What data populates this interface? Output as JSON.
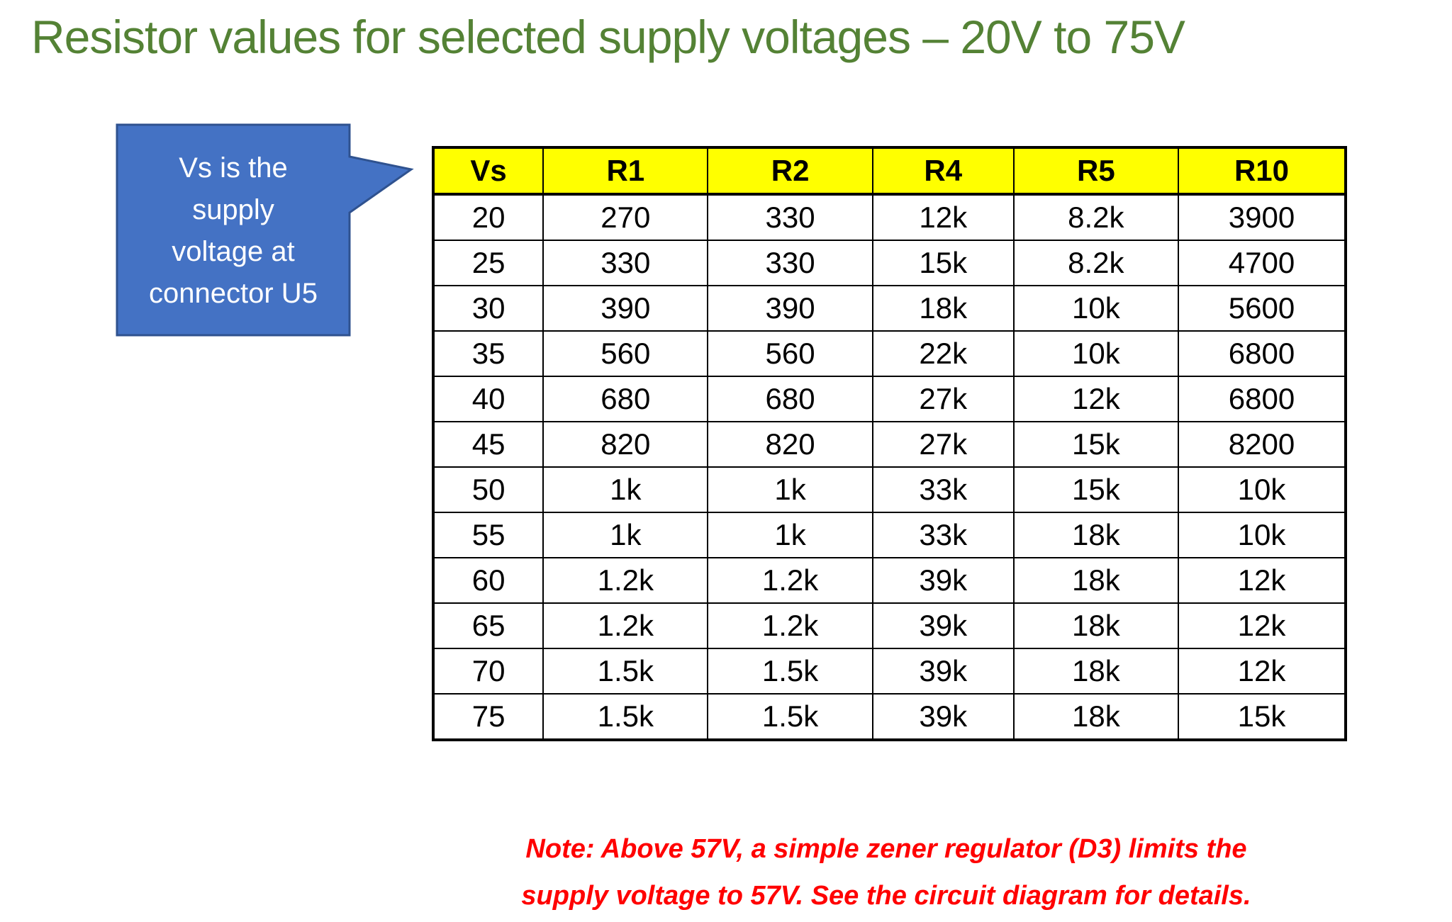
{
  "title": "Resistor values for selected supply voltages – 20V to 75V",
  "callout": {
    "lines": [
      "Vs is the",
      "supply",
      "voltage at",
      "connector U5"
    ]
  },
  "table": {
    "header": [
      "Vs",
      "R1",
      "R2",
      "R4",
      "R5",
      "R10"
    ],
    "rows": [
      [
        20,
        270,
        330,
        "12k",
        "8.2k",
        3900
      ],
      [
        25,
        330,
        330,
        "15k",
        "8.2k",
        4700
      ],
      [
        30,
        390,
        390,
        "18k",
        "10k",
        5600
      ],
      [
        35,
        560,
        560,
        "22k",
        "10k",
        6800
      ],
      [
        40,
        680,
        680,
        "27k",
        "12k",
        6800
      ],
      [
        45,
        820,
        820,
        "27k",
        "15k",
        8200
      ],
      [
        50,
        "1k",
        "1k",
        "33k",
        "15k",
        "10k"
      ],
      [
        55,
        "1k",
        "1k",
        "33k",
        "18k",
        "10k"
      ],
      [
        60,
        "1.2k",
        "1.2k",
        "39k",
        "18k",
        "12k"
      ],
      [
        65,
        "1.2k",
        "1.2k",
        "39k",
        "18k",
        "12k"
      ],
      [
        70,
        "1.5k",
        "1.5k",
        "39k",
        "18k",
        "12k"
      ],
      [
        75,
        "1.5k",
        "1.5k",
        "39k",
        "18k",
        "15k"
      ]
    ]
  },
  "note": {
    "lines": [
      "Note: Above 57V, a simple zener regulator (D3) limits the",
      "supply voltage to 57V.  See the circuit diagram for details."
    ]
  }
}
